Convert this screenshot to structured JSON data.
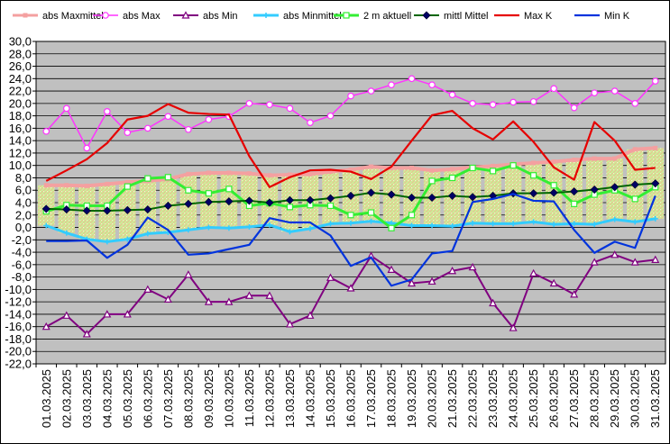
{
  "chart_data": {
    "type": "line",
    "x": [
      "01.03.2025",
      "02.03.2025",
      "03.03.2025",
      "04.03.2025",
      "05.03.2025",
      "06.03.2025",
      "07.03.2025",
      "08.03.2025",
      "09.03.2025",
      "10.03.2025",
      "11.03.2025",
      "12.03.2025",
      "13.03.2025",
      "14.03.2025",
      "15.03.2025",
      "16.03.2025",
      "17.03.2025",
      "18.03.2025",
      "19.03.2025",
      "20.03.2025",
      "21.03.2025",
      "22.03.2025",
      "23.03.2025",
      "24.03.2025",
      "25.03.2025",
      "26.03.2025",
      "27.03.2025",
      "28.03.2025",
      "29.03.2025",
      "30.03.2025",
      "31.03.2025"
    ],
    "ylim": [
      -22,
      30
    ],
    "y_ticks": [
      "30,0",
      "28,0",
      "26,0",
      "24,0",
      "22,0",
      "20,0",
      "18,0",
      "16,0",
      "14,0",
      "12,0",
      "10,0",
      "8,0",
      "6,0",
      "4,0",
      "2,0",
      "0,0",
      "-2,0",
      "-4,0",
      "-6,0",
      "-8,0",
      "-10,0",
      "-12,0",
      "-14,0",
      "-16,0",
      "-18,0",
      "-20,0",
      "-22,0"
    ],
    "grid": true,
    "legend_position": "top",
    "band": {
      "upper": "abs Maxmittel",
      "lower": "abs Minmittel"
    },
    "series": [
      {
        "name": "abs Maxmittel",
        "color": "#f4a0a0",
        "marker": "square",
        "values": [
          6.8,
          6.8,
          6.7,
          7.0,
          7.3,
          7.5,
          7.8,
          8.6,
          8.8,
          8.8,
          8.7,
          8.4,
          8.5,
          8.6,
          9.0,
          9.3,
          9.8,
          9.6,
          9.6,
          9.2,
          9.4,
          9.7,
          9.9,
          10.2,
          10.4,
          10.6,
          10.9,
          11.1,
          11.1,
          12.6,
          12.8
        ]
      },
      {
        "name": "abs Max",
        "color": "#ff33ff",
        "marker": "circle",
        "values": [
          15.5,
          19.2,
          12.8,
          18.7,
          15.3,
          16.0,
          17.9,
          15.8,
          17.4,
          17.9,
          20.0,
          19.8,
          19.2,
          16.9,
          18.0,
          21.2,
          22.0,
          23.0,
          24.0,
          23.0,
          21.4,
          20.0,
          19.8,
          20.2,
          20.3,
          22.4,
          19.3,
          21.7,
          22.0,
          20.0,
          23.6
        ]
      },
      {
        "name": "abs Min",
        "color": "#800080",
        "marker": "triangle",
        "values": [
          -16.0,
          -14.2,
          -17.2,
          -14.0,
          -14.0,
          -10.0,
          -11.6,
          -7.6,
          -12.0,
          -12.0,
          -11.0,
          -11.0,
          -15.6,
          -14.2,
          -8.1,
          -9.8,
          -4.6,
          -6.8,
          -9.0,
          -8.7,
          -7.0,
          -6.4,
          -12.2,
          -16.2,
          -7.4,
          -9.0,
          -10.8,
          -5.6,
          -4.4,
          -5.6,
          -5.2
        ]
      },
      {
        "name": "abs Minmittel",
        "color": "#33ccff",
        "marker": "cross",
        "values": [
          0.3,
          -0.9,
          -1.9,
          -2.3,
          -1.9,
          -1.0,
          -0.8,
          -0.4,
          0.0,
          -0.1,
          0.1,
          0.4,
          -0.7,
          -0.2,
          0.6,
          0.7,
          1.0,
          0.7,
          0.3,
          0.3,
          0.2,
          0.7,
          0.6,
          0.6,
          0.9,
          0.5,
          0.6,
          0.5,
          1.3,
          0.9,
          1.4
        ]
      },
      {
        "name": "2 m aktuell",
        "color": "#33ee33",
        "marker": "hollow-square",
        "values": [
          2.6,
          3.6,
          3.5,
          3.5,
          6.6,
          7.9,
          8.1,
          6.0,
          5.5,
          6.2,
          3.5,
          3.9,
          3.3,
          3.6,
          3.5,
          2.0,
          2.4,
          -0.1,
          2.0,
          7.5,
          8.0,
          9.6,
          9.1,
          10.0,
          8.4,
          6.8,
          3.8,
          5.3,
          6.0,
          4.6,
          6.5
        ]
      },
      {
        "name": "mittl Mittel",
        "color": "#006600",
        "marker": "diamond",
        "values": [
          3.0,
          2.9,
          2.7,
          2.7,
          2.8,
          2.9,
          3.5,
          3.8,
          4.1,
          4.2,
          4.3,
          4.0,
          4.4,
          4.4,
          4.7,
          5.1,
          5.6,
          5.3,
          4.8,
          4.8,
          5.1,
          4.9,
          5.1,
          5.5,
          5.5,
          5.6,
          5.8,
          6.1,
          6.5,
          6.9,
          7.1
        ]
      },
      {
        "name": "Max K",
        "color": "#e60000",
        "marker": "none",
        "values": [
          7.5,
          9.2,
          11.0,
          13.6,
          17.4,
          18.0,
          19.9,
          18.5,
          18.3,
          18.2,
          11.5,
          6.5,
          8.1,
          9.2,
          9.3,
          9.0,
          7.8,
          9.8,
          14.0,
          18.1,
          18.8,
          16.0,
          14.2,
          17.1,
          13.8,
          9.7,
          7.7,
          17.0,
          14.0,
          9.3,
          9.6
        ]
      },
      {
        "name": "Min K",
        "color": "#0033dd",
        "marker": "none",
        "values": [
          -2.2,
          -2.2,
          -2.1,
          -4.9,
          -2.8,
          1.6,
          -0.4,
          -4.4,
          -4.2,
          -3.5,
          -2.8,
          1.5,
          0.8,
          0.8,
          -1.3,
          -6.2,
          -4.8,
          -9.4,
          -8.4,
          -4.2,
          -3.8,
          4.1,
          4.6,
          5.4,
          4.3,
          4.2,
          -0.4,
          -4.1,
          -2.3,
          -3.3,
          5.1
        ]
      }
    ]
  }
}
